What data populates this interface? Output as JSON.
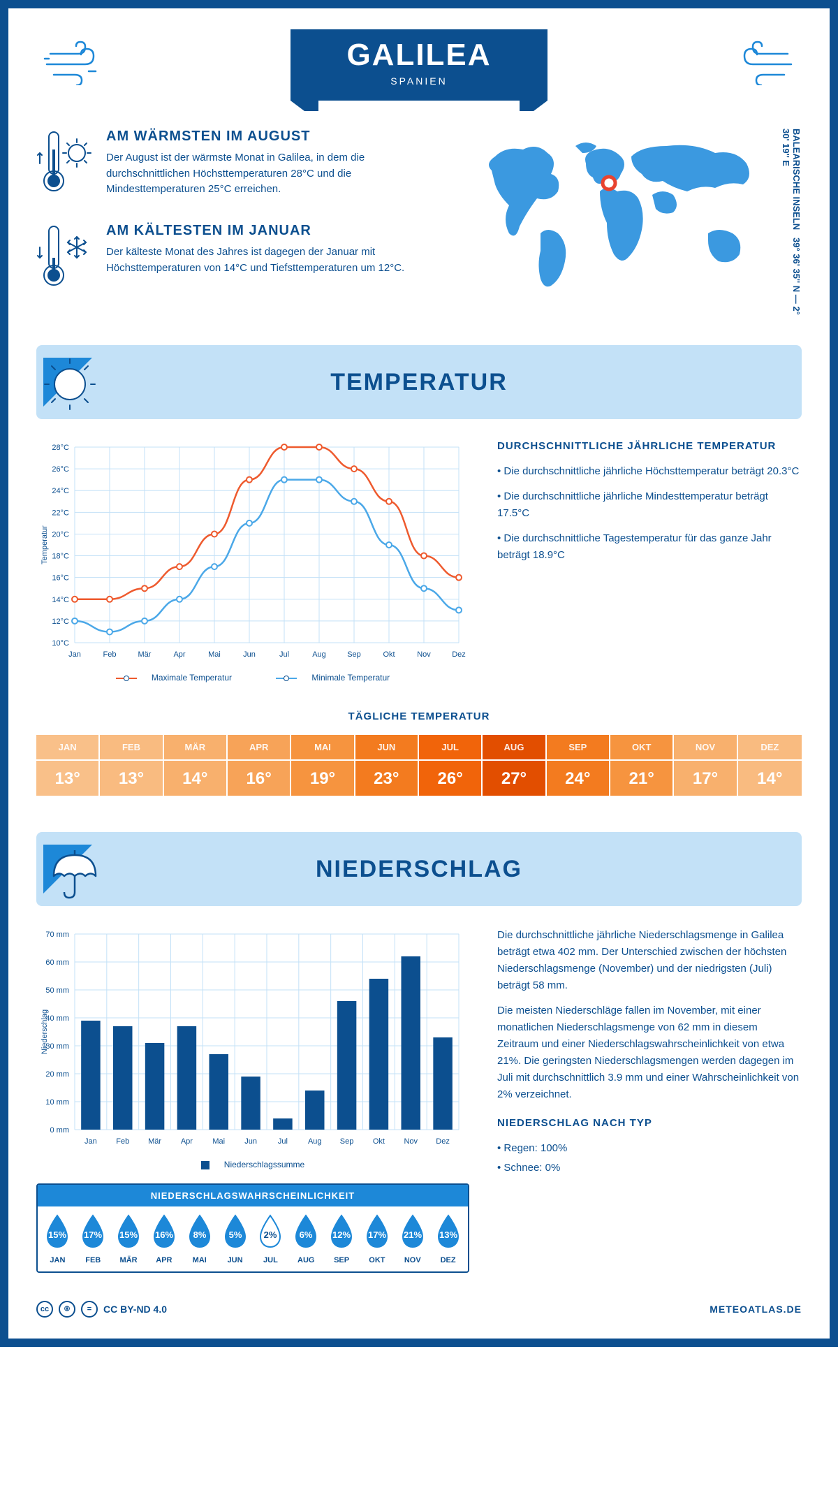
{
  "header": {
    "title": "GALILEA",
    "subtitle": "SPANIEN"
  },
  "coords": "39° 36' 35'' N — 2° 30' 19'' E",
  "region": "BALEARISCHE INSELN",
  "warmest": {
    "title": "AM WÄRMSTEN IM AUGUST",
    "text": "Der August ist der wärmste Monat in Galilea, in dem die durchschnittlichen Höchsttemperaturen 28°C und die Mindesttemperaturen 25°C erreichen."
  },
  "coldest": {
    "title": "AM KÄLTESTEN IM JANUAR",
    "text": "Der kälteste Monat des Jahres ist dagegen der Januar mit Höchsttemperaturen von 14°C und Tiefsttemperaturen um 12°C."
  },
  "temp_section": {
    "title": "TEMPERATUR"
  },
  "temp_chart": {
    "months": [
      "Jan",
      "Feb",
      "Mär",
      "Apr",
      "Mai",
      "Jun",
      "Jul",
      "Aug",
      "Sep",
      "Okt",
      "Nov",
      "Dez"
    ],
    "yaxis_label": "Temperatur",
    "ymin": 10,
    "ymax": 28,
    "ystep": 2,
    "max_series": {
      "label": "Maximale Temperatur",
      "color": "#ee5a2e",
      "values": [
        14,
        14,
        15,
        17,
        20,
        25,
        28,
        28,
        26,
        23,
        18,
        16
      ]
    },
    "min_series": {
      "label": "Minimale Temperatur",
      "color": "#4ba8e8",
      "values": [
        12,
        11,
        12,
        14,
        17,
        21,
        25,
        25,
        23,
        19,
        15,
        13
      ]
    }
  },
  "temp_text": {
    "title": "DURCHSCHNITTLICHE JÄHRLICHE TEMPERATUR",
    "b1": "• Die durchschnittliche jährliche Höchsttemperatur beträgt 20.3°C",
    "b2": "• Die durchschnittliche jährliche Mindesttemperatur beträgt 17.5°C",
    "b3": "• Die durchschnittliche Tagestemperatur für das ganze Jahr beträgt 18.9°C"
  },
  "daily_temp": {
    "title": "TÄGLICHE TEMPERATUR",
    "months": [
      "JAN",
      "FEB",
      "MÄR",
      "APR",
      "MAI",
      "JUN",
      "JUL",
      "AUG",
      "SEP",
      "OKT",
      "NOV",
      "DEZ"
    ],
    "values": [
      13,
      13,
      14,
      16,
      19,
      23,
      26,
      27,
      24,
      21,
      17,
      14
    ],
    "colors": [
      "#f9c089",
      "#f9bb80",
      "#f8b06d",
      "#f7a358",
      "#f6943f",
      "#f37b1f",
      "#f1640a",
      "#e24e00",
      "#f37b1f",
      "#f6943f",
      "#f8b06d",
      "#f9bb80"
    ]
  },
  "precip_section": {
    "title": "NIEDERSCHLAG"
  },
  "precip_chart": {
    "months": [
      "Jan",
      "Feb",
      "Mär",
      "Apr",
      "Mai",
      "Jun",
      "Jul",
      "Aug",
      "Sep",
      "Okt",
      "Nov",
      "Dez"
    ],
    "yaxis_label": "Niederschlag",
    "ymin": 0,
    "ymax": 70,
    "ystep": 10,
    "values": [
      39,
      37,
      31,
      37,
      27,
      19,
      4,
      14,
      46,
      54,
      62,
      33
    ],
    "color": "#0c4f8f",
    "legend": "Niederschlagssumme"
  },
  "precip_text": {
    "p1": "Die durchschnittliche jährliche Niederschlagsmenge in Galilea beträgt etwa 402 mm. Der Unterschied zwischen der höchsten Niederschlagsmenge (November) und der niedrigsten (Juli) beträgt 58 mm.",
    "p2": "Die meisten Niederschläge fallen im November, mit einer monatlichen Niederschlagsmenge von 62 mm in diesem Zeitraum und einer Niederschlagswahrscheinlichkeit von etwa 21%. Die geringsten Niederschlagsmengen werden dagegen im Juli mit durchschnittlich 3.9 mm und einer Wahrscheinlichkeit von 2% verzeichnet.",
    "type_title": "NIEDERSCHLAG NACH TYP",
    "type1": "• Regen: 100%",
    "type2": "• Schnee: 0%"
  },
  "prob": {
    "title": "NIEDERSCHLAGSWAHRSCHEINLICHKEIT",
    "months": [
      "JAN",
      "FEB",
      "MÄR",
      "APR",
      "MAI",
      "JUN",
      "JUL",
      "AUG",
      "SEP",
      "OKT",
      "NOV",
      "DEZ"
    ],
    "values": [
      15,
      17,
      15,
      16,
      8,
      5,
      2,
      6,
      12,
      17,
      21,
      13
    ],
    "low_threshold": 3
  },
  "footer": {
    "license": "CC BY-ND 4.0",
    "site": "METEOATLAS.DE"
  },
  "colors": {
    "primary": "#0c4f8f",
    "light": "#c3e1f7",
    "accent": "#1d88d8",
    "map": "#3b99e0",
    "marker": "#e8432f"
  }
}
